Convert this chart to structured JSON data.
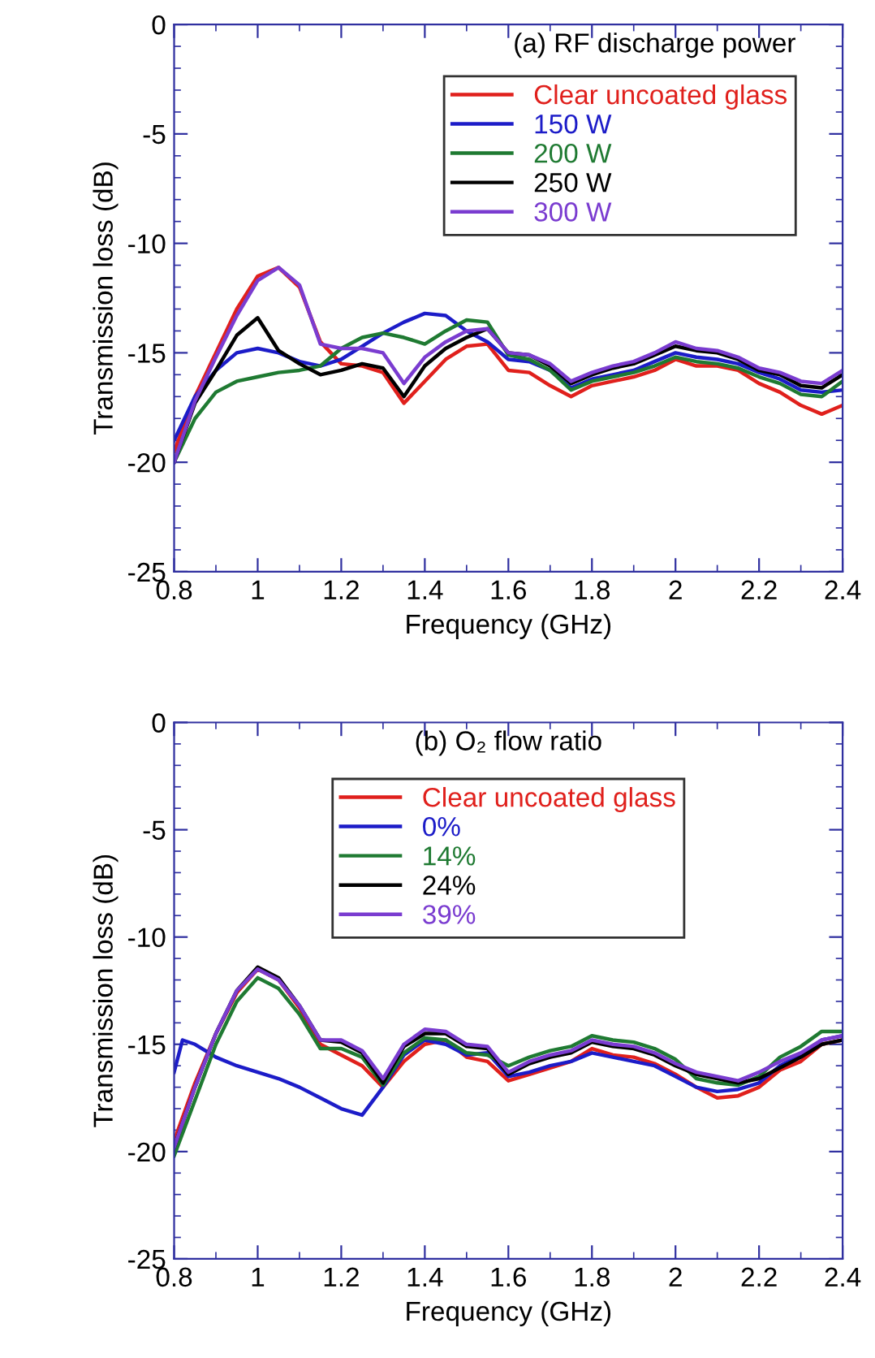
{
  "chart_data": [
    {
      "type": "line",
      "title": "(a) RF discharge power",
      "xlabel": "Frequency (GHz)",
      "ylabel": "Transmission loss (dB)",
      "x": [
        0.8,
        0.85,
        0.9,
        0.95,
        1.0,
        1.05,
        1.1,
        1.15,
        1.2,
        1.25,
        1.3,
        1.35,
        1.4,
        1.45,
        1.5,
        1.55,
        1.6,
        1.65,
        1.7,
        1.75,
        1.8,
        1.85,
        1.9,
        1.95,
        2.0,
        2.05,
        2.1,
        2.15,
        2.2,
        2.25,
        2.3,
        2.35,
        2.4
      ],
      "xlim": [
        0.8,
        2.4
      ],
      "xticks": [
        0.8,
        1,
        1.2,
        1.4,
        1.6,
        1.8,
        2,
        2.2,
        2.4
      ],
      "ylim": [
        -25,
        0
      ],
      "yticks": [
        -25,
        -20,
        -15,
        -10,
        -5,
        0
      ],
      "grid": false,
      "legend": "top right",
      "marker": "none",
      "line_style": "solid",
      "series": [
        {
          "name": "Clear uncoated glass",
          "color": "#e0201c",
          "values": [
            -19.5,
            -17.0,
            -15.0,
            -13.0,
            -11.5,
            -11.1,
            -12.0,
            -14.5,
            -15.5,
            -15.6,
            -15.9,
            -17.3,
            -16.3,
            -15.3,
            -14.7,
            -14.6,
            -15.8,
            -15.9,
            -16.5,
            -17.0,
            -16.5,
            -16.3,
            -16.1,
            -15.8,
            -15.3,
            -15.6,
            -15.6,
            -15.8,
            -16.4,
            -16.8,
            -17.4,
            -17.8,
            -17.4
          ]
        },
        {
          "name": "150 W",
          "color": "#1c1cc8",
          "values": [
            -19.0,
            -17.0,
            -15.8,
            -15.0,
            -14.8,
            -15.0,
            -15.4,
            -15.6,
            -15.3,
            -14.7,
            -14.1,
            -13.6,
            -13.2,
            -13.3,
            -14.0,
            -14.5,
            -15.3,
            -15.4,
            -15.8,
            -16.6,
            -16.2,
            -16.0,
            -15.8,
            -15.4,
            -15.0,
            -15.2,
            -15.3,
            -15.5,
            -15.9,
            -16.2,
            -16.7,
            -16.8,
            -16.7
          ]
        },
        {
          "name": "200 W",
          "color": "#1f7a32",
          "values": [
            -20.0,
            -18.0,
            -16.8,
            -16.3,
            -16.1,
            -15.9,
            -15.8,
            -15.6,
            -14.8,
            -14.3,
            -14.1,
            -14.3,
            -14.6,
            -14.0,
            -13.5,
            -13.6,
            -15.1,
            -15.3,
            -15.8,
            -16.7,
            -16.3,
            -16.1,
            -15.9,
            -15.6,
            -15.2,
            -15.4,
            -15.5,
            -15.7,
            -16.1,
            -16.4,
            -16.9,
            -17.0,
            -16.3
          ]
        },
        {
          "name": "250 W",
          "color": "#000000",
          "values": [
            -20.0,
            -17.3,
            -15.8,
            -14.2,
            -13.4,
            -14.9,
            -15.5,
            -16.0,
            -15.8,
            -15.5,
            -15.7,
            -17.0,
            -15.6,
            -14.8,
            -14.3,
            -13.9,
            -15.0,
            -15.1,
            -15.6,
            -16.4,
            -16.0,
            -15.7,
            -15.5,
            -15.1,
            -14.7,
            -14.9,
            -15.0,
            -15.3,
            -15.8,
            -16.0,
            -16.5,
            -16.6,
            -16.0
          ]
        },
        {
          "name": "300 W",
          "color": "#7a3cd0",
          "values": [
            -20.0,
            -17.2,
            -15.2,
            -13.3,
            -11.7,
            -11.1,
            -11.9,
            -14.6,
            -14.8,
            -14.8,
            -15.0,
            -16.4,
            -15.2,
            -14.5,
            -14.0,
            -13.9,
            -15.0,
            -15.1,
            -15.5,
            -16.3,
            -15.9,
            -15.6,
            -15.4,
            -15.0,
            -14.5,
            -14.8,
            -14.9,
            -15.2,
            -15.7,
            -15.9,
            -16.3,
            -16.4,
            -15.8
          ]
        }
      ]
    },
    {
      "type": "line",
      "title": "(b) O₂ flow ratio",
      "xlabel": "Frequency (GHz)",
      "ylabel": "Transmission loss (dB)",
      "x": [
        0.8,
        0.85,
        0.9,
        0.95,
        1.0,
        1.05,
        1.1,
        1.15,
        1.2,
        1.25,
        1.3,
        1.35,
        1.4,
        1.45,
        1.5,
        1.55,
        1.6,
        1.65,
        1.7,
        1.75,
        1.8,
        1.85,
        1.9,
        1.95,
        2.0,
        2.05,
        2.1,
        2.15,
        2.2,
        2.25,
        2.3,
        2.35,
        2.4
      ],
      "xlim": [
        0.8,
        2.4
      ],
      "xticks": [
        0.8,
        1,
        1.2,
        1.4,
        1.6,
        1.8,
        2,
        2.2,
        2.4
      ],
      "ylim": [
        -25,
        0
      ],
      "yticks": [
        -25,
        -20,
        -15,
        -10,
        -5,
        0
      ],
      "grid": false,
      "legend": "top",
      "marker": "none",
      "line_style": "solid",
      "series": [
        {
          "name": "Clear uncoated glass",
          "color": "#e0201c",
          "values": [
            -19.5,
            -16.8,
            -14.5,
            -12.6,
            -11.5,
            -12.0,
            -13.3,
            -15.0,
            -15.5,
            -16.0,
            -17.0,
            -15.8,
            -15.0,
            -14.8,
            -15.6,
            -15.8,
            -16.7,
            -16.4,
            -16.1,
            -15.8,
            -15.2,
            -15.5,
            -15.6,
            -15.9,
            -16.4,
            -17.0,
            -17.5,
            -17.4,
            -17.0,
            -16.2,
            -15.8,
            -15.0,
            -14.8
          ]
        },
        {
          "name": "0%",
          "color": "#1c1cc8",
          "x": [
            0.8,
            0.82,
            0.85,
            0.9,
            0.95,
            1.0,
            1.05,
            1.1,
            1.15,
            1.2,
            1.25,
            1.3,
            1.35,
            1.4,
            1.45,
            1.5,
            1.55,
            1.6,
            1.65,
            1.7,
            1.75,
            1.8,
            1.85,
            1.9,
            1.95,
            2.0,
            2.05,
            2.1,
            2.15,
            2.2,
            2.25,
            2.3,
            2.35,
            2.4
          ],
          "values": [
            -16.3,
            -14.8,
            -15.0,
            -15.6,
            -16.0,
            -16.3,
            -16.6,
            -17.0,
            -17.5,
            -18.0,
            -18.3,
            -17.0,
            -15.5,
            -14.8,
            -15.0,
            -15.5,
            -15.4,
            -16.5,
            -16.3,
            -16.0,
            -15.8,
            -15.4,
            -15.6,
            -15.8,
            -16.0,
            -16.5,
            -17.0,
            -17.2,
            -17.1,
            -16.8,
            -16.0,
            -15.5,
            -14.8,
            -14.6
          ]
        },
        {
          "name": "14%",
          "color": "#1f7a32",
          "values": [
            -20.2,
            -17.6,
            -15.0,
            -13.0,
            -11.9,
            -12.4,
            -13.6,
            -15.2,
            -15.2,
            -15.6,
            -16.9,
            -15.4,
            -14.7,
            -14.8,
            -15.4,
            -15.5,
            -16.0,
            -15.6,
            -15.3,
            -15.1,
            -14.6,
            -14.8,
            -14.9,
            -15.2,
            -15.7,
            -16.6,
            -16.8,
            -16.9,
            -16.5,
            -15.6,
            -15.1,
            -14.4,
            -14.4
          ]
        },
        {
          "name": "24%",
          "color": "#000000",
          "values": [
            -19.8,
            -17.0,
            -14.5,
            -12.5,
            -11.4,
            -11.9,
            -13.2,
            -14.8,
            -14.9,
            -15.4,
            -16.8,
            -15.1,
            -14.5,
            -14.5,
            -15.1,
            -15.2,
            -16.4,
            -15.9,
            -15.6,
            -15.4,
            -14.9,
            -15.1,
            -15.2,
            -15.5,
            -16.0,
            -16.4,
            -16.6,
            -16.8,
            -16.6,
            -16.1,
            -15.6,
            -15.0,
            -14.8
          ]
        },
        {
          "name": "39%",
          "color": "#7a3cd0",
          "values": [
            -19.8,
            -17.0,
            -14.5,
            -12.5,
            -11.5,
            -12.0,
            -13.2,
            -14.8,
            -14.8,
            -15.3,
            -16.6,
            -15.0,
            -14.3,
            -14.4,
            -15.0,
            -15.1,
            -16.3,
            -15.8,
            -15.5,
            -15.3,
            -14.8,
            -15.0,
            -15.1,
            -15.4,
            -15.9,
            -16.3,
            -16.5,
            -16.7,
            -16.3,
            -15.8,
            -15.4,
            -14.8,
            -14.6
          ]
        }
      ]
    }
  ]
}
